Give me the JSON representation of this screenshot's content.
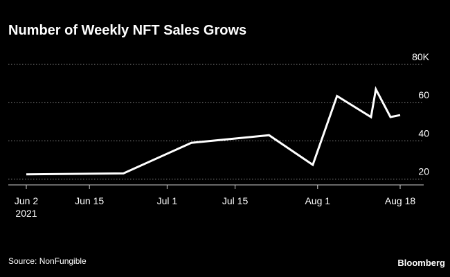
{
  "chart_data": {
    "type": "line",
    "title": "Number of Weekly NFT Sales Grows",
    "xlabel": "",
    "ylabel": "",
    "y_unit_suffix": "K",
    "ylim": [
      17,
      80
    ],
    "y_ticks": [
      20,
      40,
      60,
      80
    ],
    "y_tick_labels": [
      "20",
      "40",
      "60",
      "80K"
    ],
    "x_ticks": [
      {
        "date": "2021-06-02",
        "label": "Jun 2",
        "sublabel": "2021"
      },
      {
        "date": "2021-06-15",
        "label": "Jun 15"
      },
      {
        "date": "2021-07-01",
        "label": "Jul 1"
      },
      {
        "date": "2021-07-15",
        "label": "Jul 15"
      },
      {
        "date": "2021-08-01",
        "label": "Aug 1"
      },
      {
        "date": "2021-08-18",
        "label": "Aug 18"
      }
    ],
    "grid": true,
    "series": [
      {
        "name": "Weekly NFT sales",
        "color": "#ffffff",
        "points": [
          {
            "date": "2021-06-02",
            "value": 22.5
          },
          {
            "date": "2021-06-22",
            "value": 23
          },
          {
            "date": "2021-07-06",
            "value": 39
          },
          {
            "date": "2021-07-22",
            "value": 43
          },
          {
            "date": "2021-07-31",
            "value": 27.5
          },
          {
            "date": "2021-08-05",
            "value": 63.5
          },
          {
            "date": "2021-08-12",
            "value": 52.5
          },
          {
            "date": "2021-08-13",
            "value": 67
          },
          {
            "date": "2021-08-16",
            "value": 52.5
          },
          {
            "date": "2021-08-18",
            "value": 53.5
          }
        ]
      }
    ]
  },
  "source": "Source: NonFungible",
  "brand": "Bloomberg",
  "colors": {
    "background": "#000000",
    "text": "#ffffff",
    "grid": "#8a8a8a",
    "axis": "#d0d0d0"
  }
}
